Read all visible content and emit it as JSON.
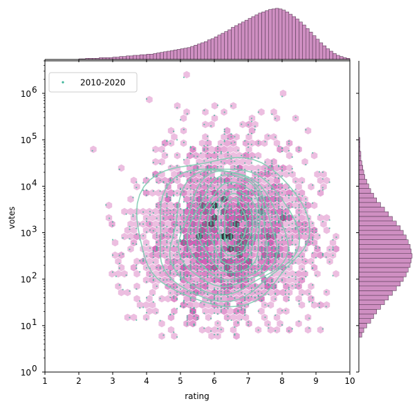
{
  "colors": {
    "scatter": "#3fb59a",
    "contour": "#7fcbb3",
    "hexbin_low": "#f6dff0",
    "hexbin_high": "#1a0a1a",
    "hist_fill": "#cf8fc2",
    "hist_edge": "#5b3d58"
  },
  "chart_data": {
    "type": "scatter",
    "xlabel": "rating",
    "ylabel": "votes",
    "xlim": [
      1,
      10
    ],
    "ylim": [
      1,
      5000000
    ],
    "yscale": "log",
    "grid": false,
    "legend": {
      "placement": "top-left",
      "entries": [
        "2010-2020"
      ]
    },
    "x_ticks": [
      "1",
      "2",
      "3",
      "4",
      "5",
      "6",
      "7",
      "8",
      "9",
      "10"
    ],
    "y_ticks": [
      {
        "exp": 0,
        "label": "10",
        "sup": "0"
      },
      {
        "exp": 1,
        "label": "10",
        "sup": "1"
      },
      {
        "exp": 2,
        "label": "10",
        "sup": "2"
      },
      {
        "exp": 3,
        "label": "10",
        "sup": "3"
      },
      {
        "exp": 4,
        "label": "10",
        "sup": "4"
      },
      {
        "exp": 5,
        "label": "10",
        "sup": "5"
      },
      {
        "exp": 6,
        "label": "10",
        "sup": "6"
      }
    ],
    "series": [
      {
        "name": "2010-2020",
        "scatter_center": {
          "rating": 6.4,
          "log10_votes": 2.85
        },
        "scatter_spread": {
          "rating": 1.2,
          "log10_votes": 0.85
        }
      }
    ],
    "kde_contours": [
      {
        "level": 1,
        "center": [
          6.2,
          2.9
        ],
        "radii": [
          2.5,
          1.55
        ]
      },
      {
        "level": 2,
        "center": [
          6.3,
          2.85
        ],
        "radii": [
          2.05,
          1.4
        ]
      },
      {
        "level": 3,
        "center": [
          6.35,
          2.85
        ],
        "radii": [
          1.7,
          1.3
        ]
      },
      {
        "level": 4,
        "center": [
          6.4,
          2.9
        ],
        "radii": [
          1.4,
          1.2
        ]
      },
      {
        "level": 5,
        "center": [
          6.45,
          2.95
        ],
        "radii": [
          1.15,
          1.1
        ]
      },
      {
        "level": 6,
        "center": [
          6.5,
          3.0
        ],
        "radii": [
          0.9,
          0.95
        ]
      },
      {
        "level": 7,
        "center": [
          6.55,
          3.05
        ],
        "radii": [
          0.7,
          0.8
        ]
      },
      {
        "level": 8,
        "center": [
          6.6,
          3.1
        ],
        "radii": [
          0.5,
          0.65
        ]
      },
      {
        "level": 9,
        "center": [
          6.6,
          3.15
        ],
        "radii": [
          0.32,
          0.5
        ]
      }
    ],
    "marginal_x": {
      "bin_start": 1.0,
      "bin_width": 0.1,
      "counts": [
        0,
        0,
        0,
        0,
        0,
        0,
        0,
        0,
        0,
        0,
        1,
        1,
        2,
        2,
        2,
        2,
        3,
        3,
        3,
        3,
        4,
        4,
        5,
        5,
        6,
        6,
        7,
        7,
        8,
        8,
        9,
        9,
        10,
        11,
        12,
        13,
        14,
        15,
        16,
        17,
        18,
        19,
        20,
        22,
        24,
        26,
        28,
        30,
        33,
        35,
        38,
        41,
        44,
        47,
        50,
        54,
        57,
        60,
        63,
        66,
        69,
        72,
        75,
        78,
        80,
        82,
        84,
        85,
        86,
        85,
        83,
        80,
        76,
        72,
        68,
        63,
        58,
        52,
        46,
        40,
        34,
        28,
        23,
        18,
        14,
        10,
        7,
        5,
        3,
        2
      ]
    },
    "marginal_y": {
      "bin_start_log10": 0.75,
      "bin_width_log10": 0.1,
      "counts": [
        3,
        5,
        8,
        12,
        15,
        18,
        22,
        26,
        30,
        34,
        38,
        42,
        45,
        48,
        50,
        52,
        53,
        54,
        53,
        52,
        50,
        48,
        45,
        42,
        38,
        34,
        30,
        26,
        22,
        18,
        15,
        12,
        10,
        8,
        6,
        5,
        4,
        3,
        2,
        2,
        1,
        1,
        1,
        0,
        0,
        0,
        0,
        0,
        0,
        0
      ]
    }
  }
}
